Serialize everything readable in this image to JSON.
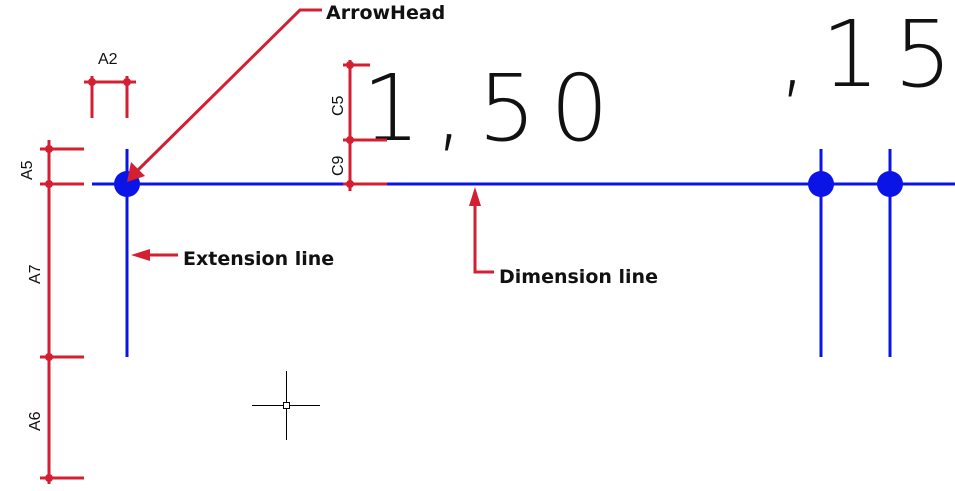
{
  "colors": {
    "dimension_blue": "#0a14e6",
    "annotation_red": "#d41e32",
    "text": "#111111",
    "cursor": "#000000",
    "background": "#ffffff"
  },
  "callouts": {
    "arrowhead": "ArrowHead",
    "extension_line": "Extension line",
    "dimension_line": "Dimension line"
  },
  "parameters": {
    "arrow_size": "A2",
    "extension_beyond_dim": "A5",
    "extension_length": "A7",
    "extension_offset": "A6",
    "text_height": "C5",
    "text_gap": "C9"
  },
  "dimension_texts": {
    "main_value": "1,50",
    "secondary_value": ",15"
  },
  "icons": {
    "cursor": "crosshair-cursor-icon"
  }
}
